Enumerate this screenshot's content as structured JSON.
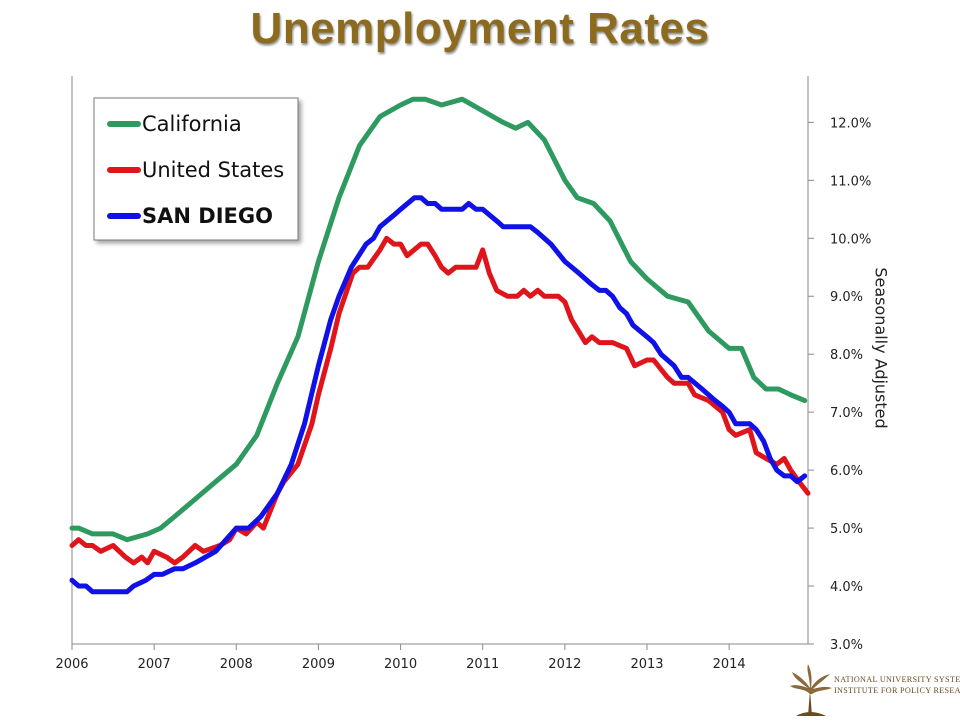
{
  "title": "Unemployment Rates",
  "chart_data": {
    "type": "line",
    "title": "Unemployment Rates",
    "ylabel": "Seasonally Adjusted",
    "xlabel": "",
    "x_ticks": [
      "2006",
      "2007",
      "2008",
      "2009",
      "2010",
      "2011",
      "2012",
      "2013",
      "2014"
    ],
    "y_ticks": [
      "3.0%",
      "4.0%",
      "5.0%",
      "6.0%",
      "7.0%",
      "8.0%",
      "9.0%",
      "10.0%",
      "11.0%",
      "12.0%"
    ],
    "xlim": [
      2006.0,
      2014.96
    ],
    "ylim": [
      3.0,
      12.8
    ],
    "y_axis_side": "right",
    "grid": false,
    "legend": "top-left",
    "series": [
      {
        "name": "California",
        "color": "#2e9a5f",
        "points": [
          [
            2006.0,
            5.0
          ],
          [
            2006.08,
            5.0
          ],
          [
            2006.25,
            4.9
          ],
          [
            2006.5,
            4.9
          ],
          [
            2006.67,
            4.8
          ],
          [
            2006.92,
            4.9
          ],
          [
            2007.08,
            5.0
          ],
          [
            2007.25,
            5.2
          ],
          [
            2007.5,
            5.5
          ],
          [
            2007.75,
            5.8
          ],
          [
            2008.0,
            6.1
          ],
          [
            2008.25,
            6.6
          ],
          [
            2008.5,
            7.5
          ],
          [
            2008.75,
            8.3
          ],
          [
            2009.0,
            9.6
          ],
          [
            2009.25,
            10.7
          ],
          [
            2009.5,
            11.6
          ],
          [
            2009.75,
            12.1
          ],
          [
            2010.0,
            12.3
          ],
          [
            2010.15,
            12.4
          ],
          [
            2010.3,
            12.4
          ],
          [
            2010.5,
            12.3
          ],
          [
            2010.75,
            12.4
          ],
          [
            2011.0,
            12.2
          ],
          [
            2011.25,
            12.0
          ],
          [
            2011.4,
            11.9
          ],
          [
            2011.55,
            12.0
          ],
          [
            2011.75,
            11.7
          ],
          [
            2012.0,
            11.0
          ],
          [
            2012.15,
            10.7
          ],
          [
            2012.35,
            10.6
          ],
          [
            2012.55,
            10.3
          ],
          [
            2012.8,
            9.6
          ],
          [
            2013.0,
            9.3
          ],
          [
            2013.25,
            9.0
          ],
          [
            2013.5,
            8.9
          ],
          [
            2013.75,
            8.4
          ],
          [
            2014.0,
            8.1
          ],
          [
            2014.15,
            8.1
          ],
          [
            2014.3,
            7.6
          ],
          [
            2014.45,
            7.4
          ],
          [
            2014.6,
            7.4
          ],
          [
            2014.75,
            7.3
          ],
          [
            2014.92,
            7.2
          ]
        ]
      },
      {
        "name": "United States",
        "color": "#e0151b",
        "points": [
          [
            2006.0,
            4.7
          ],
          [
            2006.08,
            4.8
          ],
          [
            2006.17,
            4.7
          ],
          [
            2006.25,
            4.7
          ],
          [
            2006.35,
            4.6
          ],
          [
            2006.5,
            4.7
          ],
          [
            2006.65,
            4.5
          ],
          [
            2006.75,
            4.4
          ],
          [
            2006.85,
            4.5
          ],
          [
            2006.92,
            4.4
          ],
          [
            2007.0,
            4.6
          ],
          [
            2007.15,
            4.5
          ],
          [
            2007.25,
            4.4
          ],
          [
            2007.35,
            4.5
          ],
          [
            2007.5,
            4.7
          ],
          [
            2007.6,
            4.6
          ],
          [
            2007.8,
            4.7
          ],
          [
            2007.92,
            4.8
          ],
          [
            2008.0,
            5.0
          ],
          [
            2008.12,
            4.9
          ],
          [
            2008.25,
            5.1
          ],
          [
            2008.33,
            5.0
          ],
          [
            2008.5,
            5.6
          ],
          [
            2008.58,
            5.8
          ],
          [
            2008.75,
            6.1
          ],
          [
            2008.92,
            6.8
          ],
          [
            2009.0,
            7.3
          ],
          [
            2009.15,
            8.1
          ],
          [
            2009.25,
            8.7
          ],
          [
            2009.42,
            9.4
          ],
          [
            2009.5,
            9.5
          ],
          [
            2009.6,
            9.5
          ],
          [
            2009.75,
            9.8
          ],
          [
            2009.83,
            10.0
          ],
          [
            2009.92,
            9.9
          ],
          [
            2010.0,
            9.9
          ],
          [
            2010.08,
            9.7
          ],
          [
            2010.25,
            9.9
          ],
          [
            2010.33,
            9.9
          ],
          [
            2010.42,
            9.7
          ],
          [
            2010.5,
            9.5
          ],
          [
            2010.58,
            9.4
          ],
          [
            2010.67,
            9.5
          ],
          [
            2010.83,
            9.5
          ],
          [
            2010.92,
            9.5
          ],
          [
            2011.0,
            9.8
          ],
          [
            2011.08,
            9.4
          ],
          [
            2011.17,
            9.1
          ],
          [
            2011.3,
            9.0
          ],
          [
            2011.42,
            9.0
          ],
          [
            2011.5,
            9.1
          ],
          [
            2011.58,
            9.0
          ],
          [
            2011.67,
            9.1
          ],
          [
            2011.75,
            9.0
          ],
          [
            2011.92,
            9.0
          ],
          [
            2012.0,
            8.9
          ],
          [
            2012.08,
            8.6
          ],
          [
            2012.25,
            8.2
          ],
          [
            2012.33,
            8.3
          ],
          [
            2012.42,
            8.2
          ],
          [
            2012.58,
            8.2
          ],
          [
            2012.75,
            8.1
          ],
          [
            2012.85,
            7.8
          ],
          [
            2013.0,
            7.9
          ],
          [
            2013.08,
            7.9
          ],
          [
            2013.25,
            7.6
          ],
          [
            2013.33,
            7.5
          ],
          [
            2013.5,
            7.5
          ],
          [
            2013.58,
            7.3
          ],
          [
            2013.75,
            7.2
          ],
          [
            2013.92,
            7.0
          ],
          [
            2014.0,
            6.7
          ],
          [
            2014.08,
            6.6
          ],
          [
            2014.25,
            6.7
          ],
          [
            2014.33,
            6.3
          ],
          [
            2014.45,
            6.2
          ],
          [
            2014.58,
            6.1
          ],
          [
            2014.67,
            6.2
          ],
          [
            2014.75,
            6.0
          ],
          [
            2014.85,
            5.8
          ],
          [
            2014.96,
            5.6
          ]
        ]
      },
      {
        "name": "SAN DIEGO",
        "color": "#1010e8",
        "points": [
          [
            2006.0,
            4.1
          ],
          [
            2006.08,
            4.0
          ],
          [
            2006.17,
            4.0
          ],
          [
            2006.25,
            3.9
          ],
          [
            2006.5,
            3.9
          ],
          [
            2006.67,
            3.9
          ],
          [
            2006.75,
            4.0
          ],
          [
            2006.9,
            4.1
          ],
          [
            2007.0,
            4.2
          ],
          [
            2007.1,
            4.2
          ],
          [
            2007.25,
            4.3
          ],
          [
            2007.35,
            4.3
          ],
          [
            2007.5,
            4.4
          ],
          [
            2007.75,
            4.6
          ],
          [
            2008.0,
            5.0
          ],
          [
            2008.15,
            5.0
          ],
          [
            2008.3,
            5.2
          ],
          [
            2008.5,
            5.6
          ],
          [
            2008.67,
            6.1
          ],
          [
            2008.83,
            6.8
          ],
          [
            2009.0,
            7.8
          ],
          [
            2009.15,
            8.6
          ],
          [
            2009.25,
            9.0
          ],
          [
            2009.4,
            9.5
          ],
          [
            2009.58,
            9.9
          ],
          [
            2009.67,
            10.0
          ],
          [
            2009.75,
            10.2
          ],
          [
            2009.92,
            10.4
          ],
          [
            2010.0,
            10.5
          ],
          [
            2010.17,
            10.7
          ],
          [
            2010.25,
            10.7
          ],
          [
            2010.33,
            10.6
          ],
          [
            2010.42,
            10.6
          ],
          [
            2010.5,
            10.5
          ],
          [
            2010.67,
            10.5
          ],
          [
            2010.75,
            10.5
          ],
          [
            2010.83,
            10.6
          ],
          [
            2010.92,
            10.5
          ],
          [
            2011.0,
            10.5
          ],
          [
            2011.17,
            10.3
          ],
          [
            2011.25,
            10.2
          ],
          [
            2011.5,
            10.2
          ],
          [
            2011.58,
            10.2
          ],
          [
            2011.67,
            10.1
          ],
          [
            2011.83,
            9.9
          ],
          [
            2012.0,
            9.6
          ],
          [
            2012.17,
            9.4
          ],
          [
            2012.33,
            9.2
          ],
          [
            2012.42,
            9.1
          ],
          [
            2012.5,
            9.1
          ],
          [
            2012.58,
            9.0
          ],
          [
            2012.67,
            8.8
          ],
          [
            2012.75,
            8.7
          ],
          [
            2012.83,
            8.5
          ],
          [
            2013.0,
            8.3
          ],
          [
            2013.08,
            8.2
          ],
          [
            2013.17,
            8.0
          ],
          [
            2013.33,
            7.8
          ],
          [
            2013.42,
            7.6
          ],
          [
            2013.5,
            7.6
          ],
          [
            2013.67,
            7.4
          ],
          [
            2013.83,
            7.2
          ],
          [
            2013.92,
            7.1
          ],
          [
            2014.0,
            7.0
          ],
          [
            2014.08,
            6.8
          ],
          [
            2014.25,
            6.8
          ],
          [
            2014.33,
            6.7
          ],
          [
            2014.42,
            6.5
          ],
          [
            2014.5,
            6.2
          ],
          [
            2014.58,
            6.0
          ],
          [
            2014.67,
            5.9
          ],
          [
            2014.75,
            5.9
          ],
          [
            2014.83,
            5.8
          ],
          [
            2014.92,
            5.9
          ]
        ]
      }
    ]
  },
  "legend": {
    "items": [
      {
        "label": "California",
        "color": "#2e9a5f",
        "bold": false
      },
      {
        "label": "United States",
        "color": "#e0151b",
        "bold": false
      },
      {
        "label": "SAN DIEGO",
        "color": "#1010e8",
        "bold": true
      }
    ]
  },
  "logo": {
    "icon": "tree-icon",
    "line1": "NATIONAL UNIVERSITY SYSTEM",
    "line2": "INSTITUTE FOR POLICY RESEARCH",
    "color": "#6b4a22"
  }
}
